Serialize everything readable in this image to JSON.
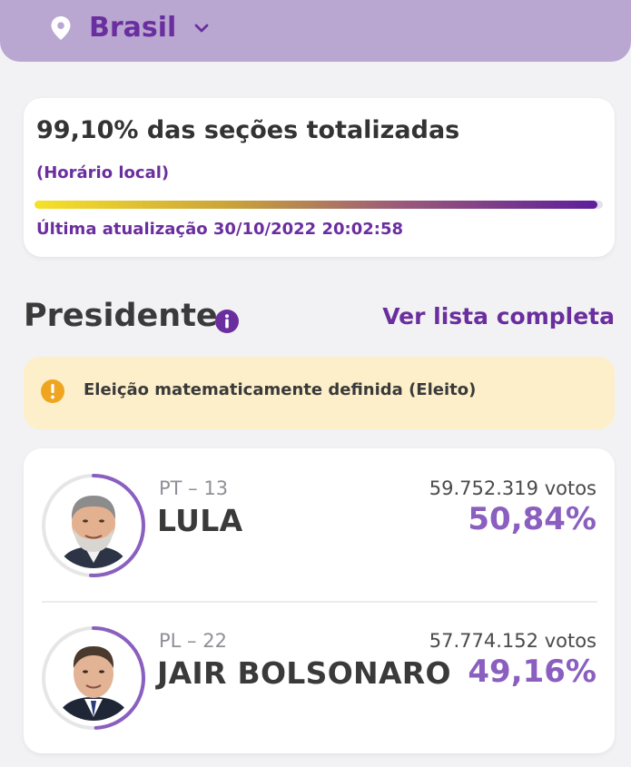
{
  "header": {
    "region": "Brasil",
    "icons": {
      "location": "location-pin-icon",
      "dropdown": "chevron-down-icon"
    },
    "background": "#b9a7d2",
    "accent": "#6a2e9e"
  },
  "status": {
    "sections_counted": "99,10% das seções totalizadas",
    "timezone_note": "(Horário local)",
    "last_update": "Última atualização 30/10/2022 20:02:58",
    "progress_percent": 99.1
  },
  "president": {
    "title": "Presidente",
    "see_all": "Ver lista completa",
    "alert": "Eleição matematicamente definida (Eleito)",
    "candidates": [
      {
        "party": "PT – 13",
        "name": "LULA",
        "votes": "59.752.319 votos",
        "percent_text": "50,84%",
        "percent_value": 50.84,
        "avatar": "candidate-photo-lula"
      },
      {
        "party": "PL – 22",
        "name": "JAIR BOLSONARO",
        "votes": "57.774.152 votos",
        "percent_text": "49,16%",
        "percent_value": 49.16,
        "avatar": "candidate-photo-bolsonaro"
      }
    ]
  },
  "colors": {
    "primary": "#6a2e9e",
    "percent": "#8a5fbf",
    "alert_bg": "#fcefc9",
    "alert_icon": "#f0a520"
  }
}
